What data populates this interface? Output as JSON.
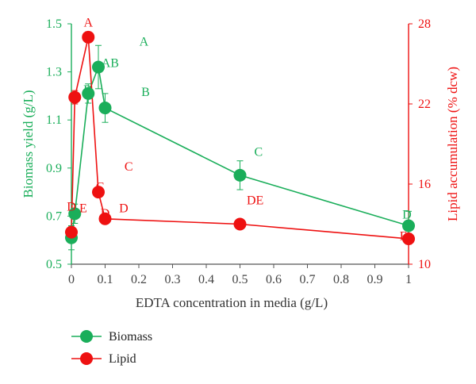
{
  "colors": {
    "biomass": "#1aae5a",
    "lipid": "#ee1111",
    "axis_dark": "#555555"
  },
  "chart_data": {
    "type": "line",
    "xlabel": "EDTA concentration in media (g/L)",
    "ylabel_left": "Biomass yield (g/L)",
    "ylabel_right": "Lipid accumulation (% dcw)",
    "xlim": [
      0,
      1
    ],
    "ylim_left": [
      0.5,
      1.5
    ],
    "ylim_right": [
      10,
      28
    ],
    "x_ticks": [
      "0",
      "0.1",
      "0.2",
      "0.3",
      "0.4",
      "0.5",
      "0.6",
      "0.7",
      "0.8",
      "0.9",
      "1"
    ],
    "y_left_ticks": [
      "0.5",
      "0.7",
      "0.9",
      "1.1",
      "1.3",
      "1.5"
    ],
    "y_right_ticks": [
      "10",
      "16",
      "22",
      "28"
    ],
    "series": [
      {
        "name": "Biomass",
        "axis": "left",
        "x": [
          0,
          0.01,
          0.05,
          0.08,
          0.1,
          0.5,
          1
        ],
        "y": [
          0.61,
          0.71,
          1.21,
          1.32,
          1.15,
          0.87,
          0.66
        ],
        "err": [
          0.05,
          0.04,
          0.04,
          0.09,
          0.06,
          0.06,
          0.06
        ]
      },
      {
        "name": "Lipid",
        "axis": "right",
        "x": [
          0,
          0.01,
          0.05,
          0.08,
          0.1,
          0.5,
          1
        ],
        "y": [
          12.4,
          22.5,
          27,
          15.4,
          13.4,
          13,
          11.9
        ],
        "err": [
          0.4,
          0.5,
          0.4,
          0.3,
          0.3,
          0.3,
          0.4
        ]
      }
    ],
    "annotations": [
      {
        "text": "A",
        "series": "Lipid",
        "x": 0.05,
        "y": 27.8,
        "axis": "right"
      },
      {
        "text": "A",
        "series": "Biomass",
        "x": 0.215,
        "y": 1.41,
        "axis": "left"
      },
      {
        "text": "AB",
        "series": "Biomass",
        "x": 0.115,
        "y": 1.32,
        "axis": "left"
      },
      {
        "text": "B",
        "series": "Biomass",
        "x": 0.22,
        "y": 1.2,
        "axis": "left"
      },
      {
        "text": "B",
        "series": "Biomass",
        "x": 0.048,
        "y": 1.21,
        "axis": "left"
      },
      {
        "text": "C",
        "series": "Biomass",
        "x": 0.555,
        "y": 0.95,
        "axis": "left"
      },
      {
        "text": "C",
        "series": "Lipid",
        "x": 0.17,
        "y": 17.0,
        "axis": "right"
      },
      {
        "text": "C",
        "series": "Lipid",
        "x": 0.085,
        "y": 15.5,
        "axis": "right"
      },
      {
        "text": "D",
        "series": "Biomass",
        "x": 0.995,
        "y": 0.69,
        "axis": "left"
      },
      {
        "text": "D",
        "series": "Lipid",
        "x": 0.155,
        "y": 13.9,
        "axis": "right"
      },
      {
        "text": "DE",
        "series": "Lipid",
        "x": 0.545,
        "y": 14.5,
        "axis": "right"
      },
      {
        "text": "E",
        "series": "Lipid",
        "x": 0.985,
        "y": 11.8,
        "axis": "right"
      },
      {
        "text": "E",
        "series": "Lipid",
        "x": 0.035,
        "y": 13.9,
        "axis": "right"
      },
      {
        "text": "D",
        "series": "Lipid",
        "x": 0.0,
        "y": 14.0,
        "axis": "right"
      },
      {
        "text": "D",
        "series": "Lipid",
        "x": 0.1,
        "y": 13.5,
        "axis": "right"
      }
    ],
    "legend": {
      "placement": "bottom-left",
      "entries": [
        "Biomass",
        "Lipid"
      ]
    },
    "grid": false
  }
}
